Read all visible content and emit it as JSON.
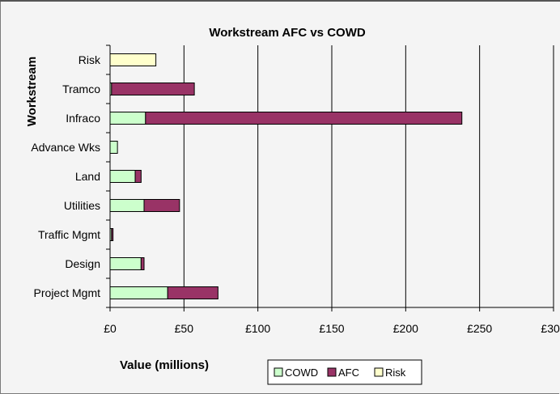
{
  "chart_data": {
    "type": "bar",
    "stacked": true,
    "orientation": "horizontal",
    "title": "Workstream AFC vs COWD",
    "xlabel": "Value (millions)",
    "ylabel": "Workstream",
    "categories": [
      "Risk",
      "Tramco",
      "Infraco",
      "Advance Wks",
      "Land",
      "Utilities",
      "Traffic Mgmt",
      "Design",
      "Project Mgmt"
    ],
    "series": [
      {
        "name": "COWD",
        "color": "#ccffcc",
        "values": [
          0,
          1,
          24,
          5,
          17,
          23,
          1,
          21,
          39
        ]
      },
      {
        "name": "AFC",
        "color": "#993366",
        "values": [
          0,
          56,
          214,
          0,
          4,
          24,
          1,
          2,
          34
        ]
      },
      {
        "name": "Risk",
        "color": "#ffffcc",
        "values": [
          31,
          0,
          0,
          0,
          0,
          0,
          0,
          0,
          0
        ]
      }
    ],
    "xlim": [
      0,
      300
    ],
    "xticks": [
      "£0",
      "£50",
      "£100",
      "£150",
      "£200",
      "£250",
      "£300"
    ],
    "grid": true,
    "legend": "bottom"
  }
}
